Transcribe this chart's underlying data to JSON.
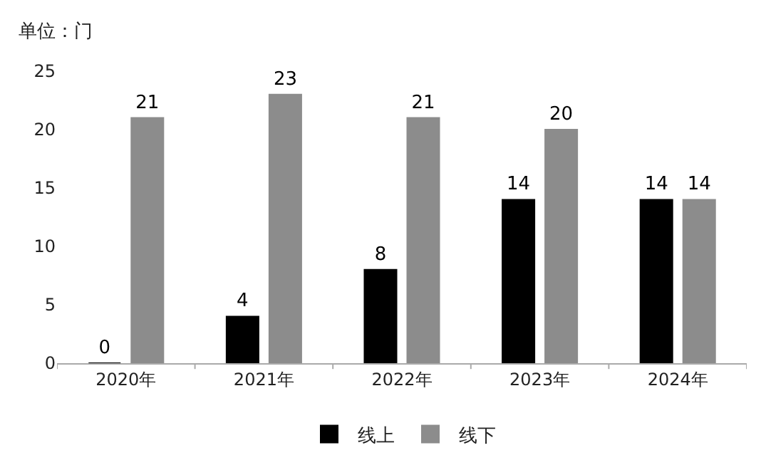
{
  "chart_data": {
    "type": "bar",
    "ylabel": "单位：门",
    "categories": [
      "2020年",
      "2021年",
      "2022年",
      "2023年",
      "2024年"
    ],
    "series": [
      {
        "name": "线上",
        "color": "#000000",
        "values": [
          0,
          4,
          8,
          14,
          14
        ]
      },
      {
        "name": "线下",
        "color": "#8c8c8c",
        "values": [
          21,
          23,
          21,
          20,
          14
        ]
      }
    ],
    "ylim": [
      0,
      25
    ],
    "yticks": [
      0,
      5,
      10,
      15,
      20,
      25
    ],
    "legend": "bottom",
    "data_labels": true
  }
}
